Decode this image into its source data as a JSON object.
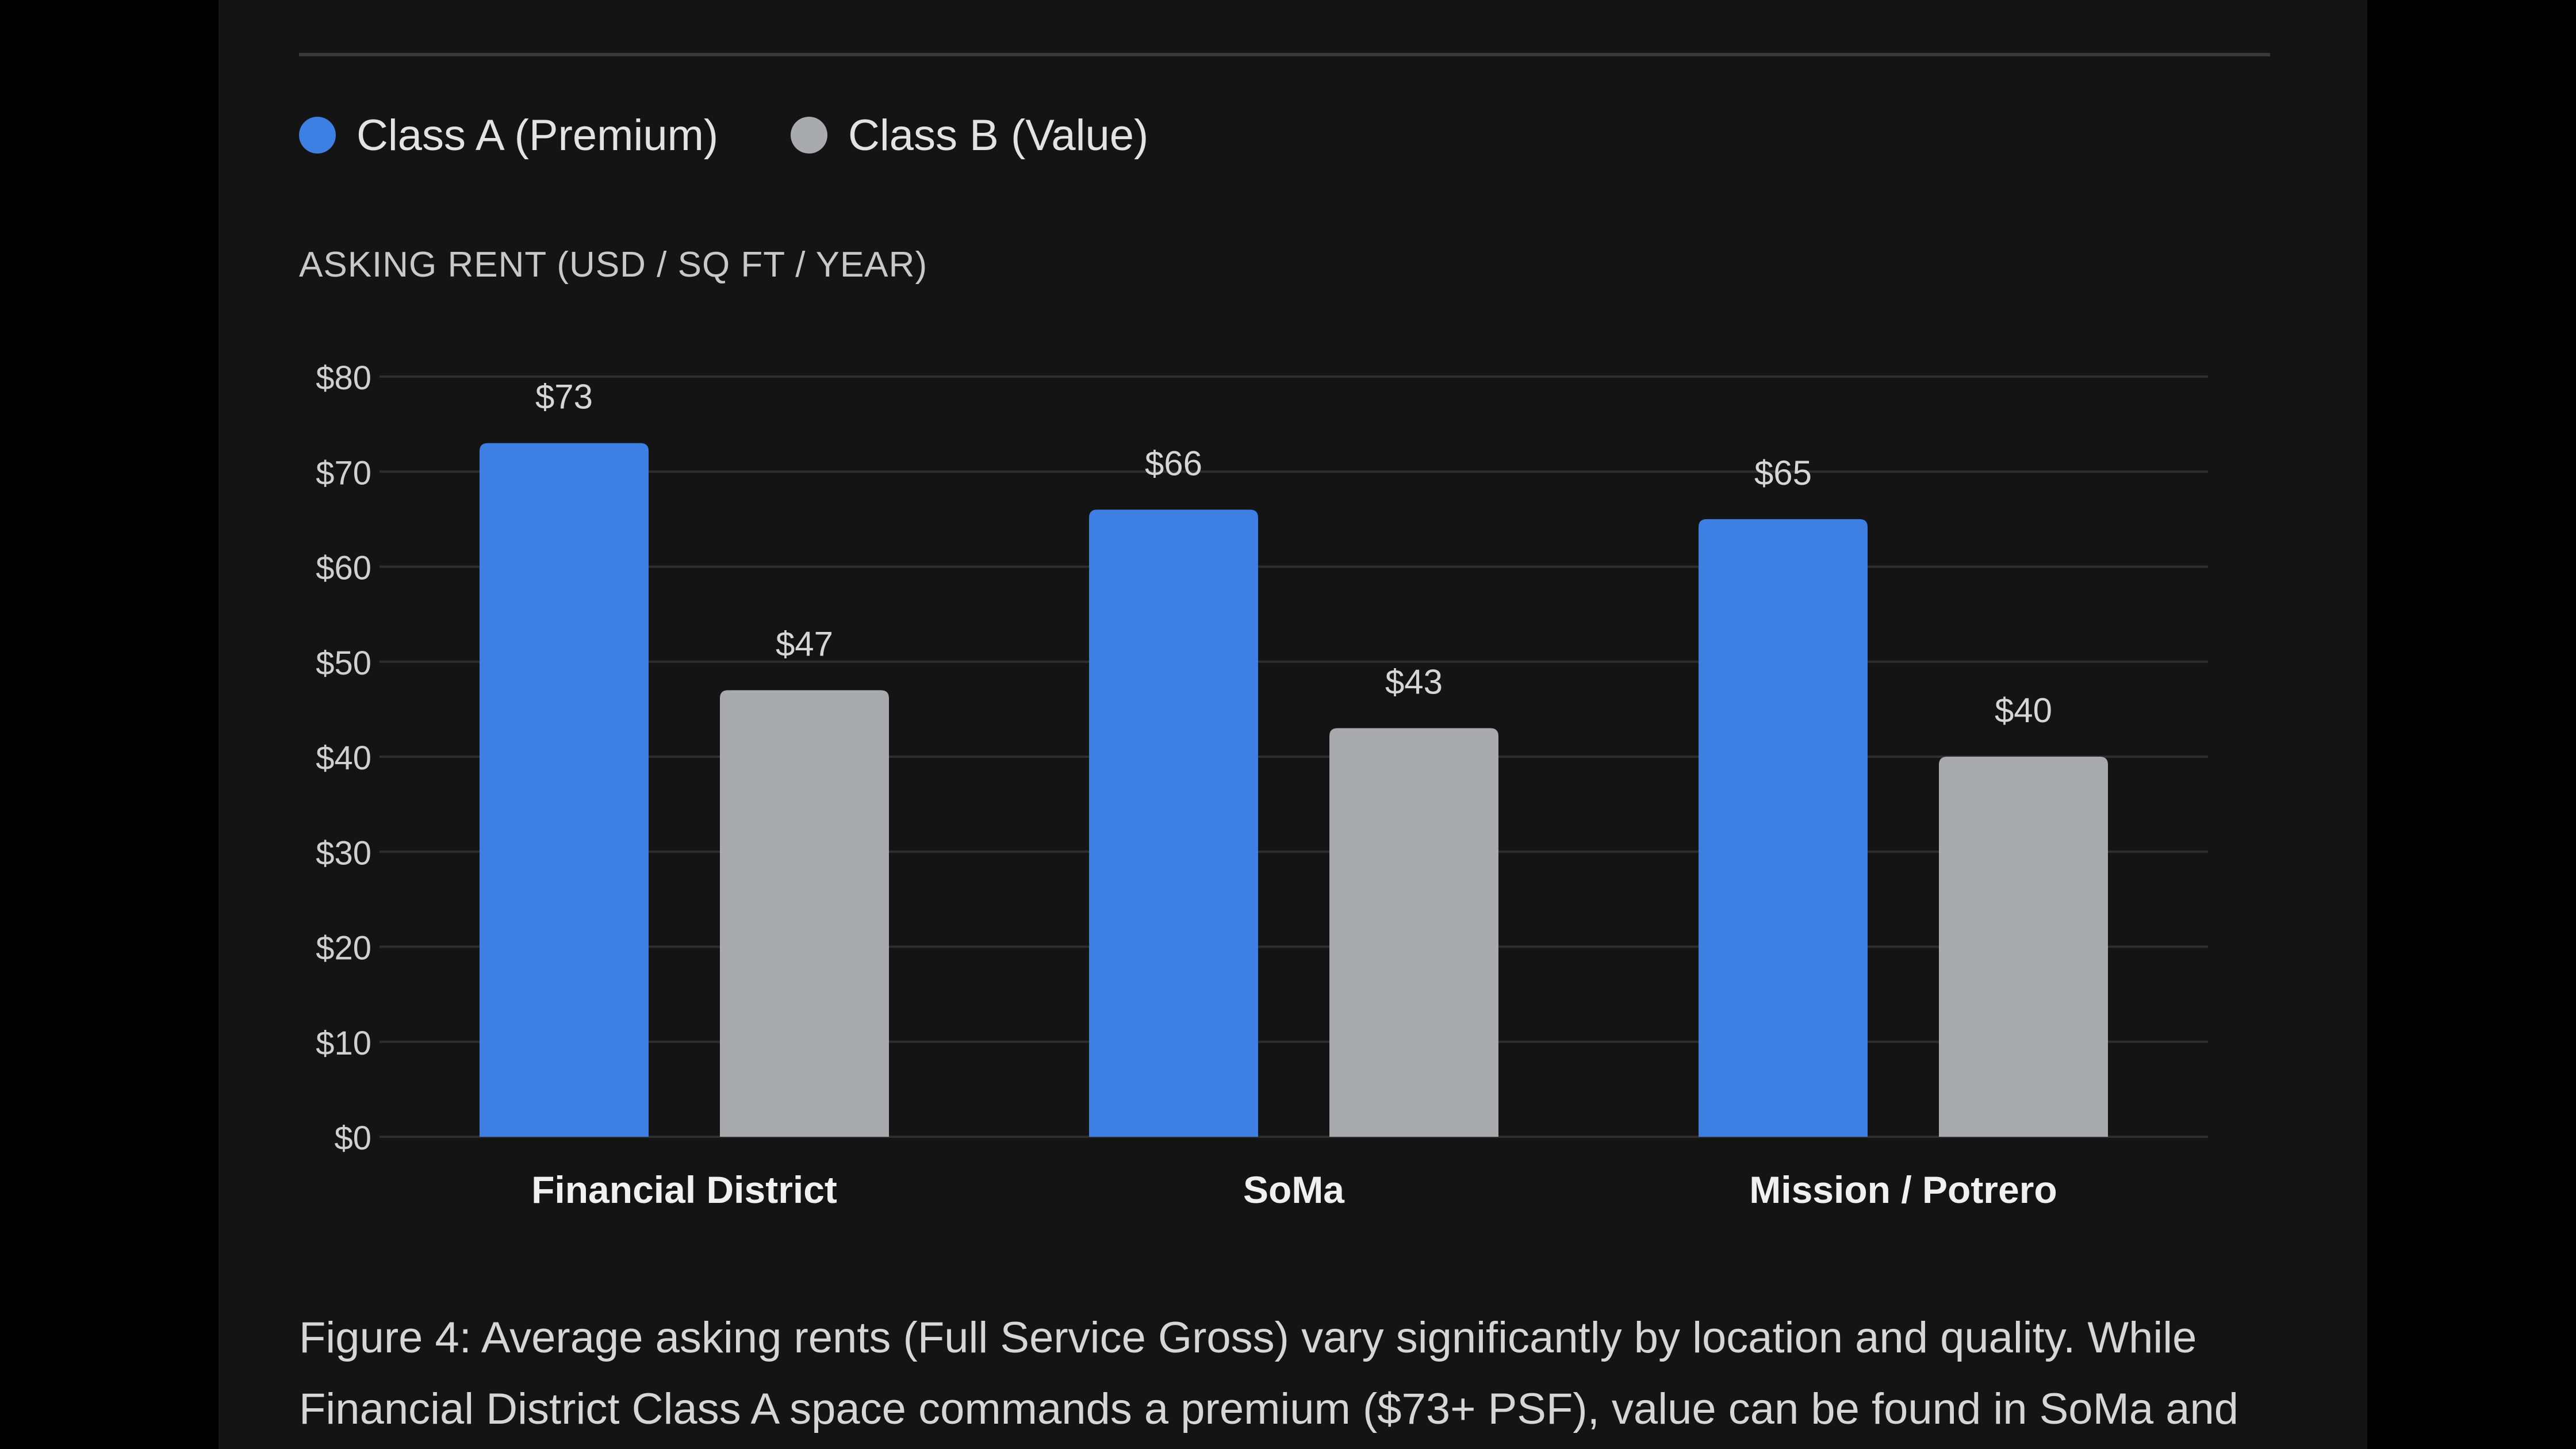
{
  "legend": [
    {
      "label": "Class A (Premium)",
      "color": "#3e7fe3"
    },
    {
      "label": "Class B (Value)",
      "color": "#a8aaae"
    }
  ],
  "caption": "Figure 4: Average asking rents (Full Service Gross) vary significantly by location and quality. While Financial District Class A space commands a premium ($73+ PSF), value can be found in SoMa and",
  "chart_data": {
    "type": "bar",
    "ylabel": "ASKING RENT (USD / SQ FT / YEAR)",
    "categories": [
      "Financial District",
      "SoMa",
      "Mission / Potrero"
    ],
    "series": [
      {
        "name": "Class A (Premium)",
        "values": [
          73,
          66,
          65
        ],
        "labels": [
          "$73",
          "$66",
          "$65"
        ],
        "color": "#3e7fe3"
      },
      {
        "name": "Class B (Value)",
        "values": [
          47,
          43,
          40
        ],
        "labels": [
          "$47",
          "$43",
          "$40"
        ],
        "color": "#a8aaae"
      }
    ],
    "ylim": [
      0,
      80
    ],
    "yticks": [
      0,
      10,
      20,
      30,
      40,
      50,
      60,
      70,
      80
    ],
    "ytick_labels": [
      "$0",
      "$10",
      "$20",
      "$30",
      "$40",
      "$50",
      "$60",
      "$70",
      "$80"
    ],
    "grid": true,
    "legend_position": "top-left"
  }
}
